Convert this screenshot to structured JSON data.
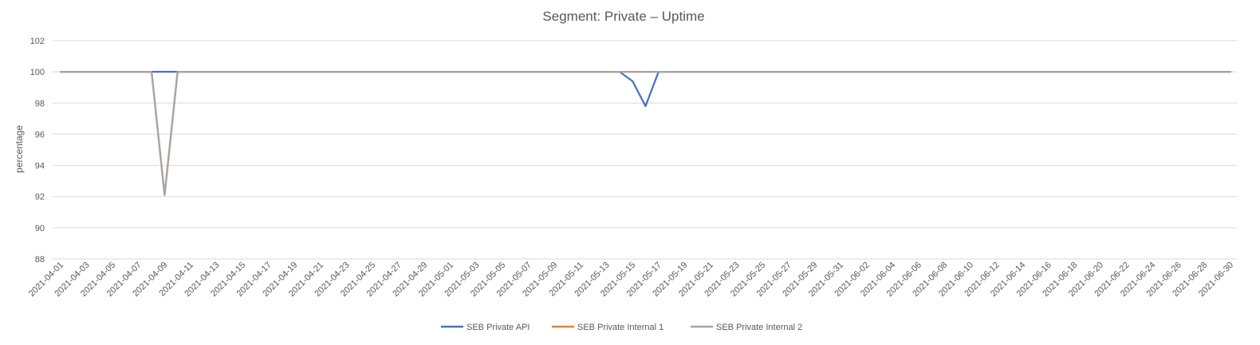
{
  "chart_data": {
    "type": "line",
    "title": "Segment: Private – Uptime",
    "xlabel": "",
    "ylabel": "percentage",
    "ylim": [
      88,
      102
    ],
    "yticks": [
      88,
      90,
      92,
      94,
      96,
      98,
      100,
      102
    ],
    "grid": true,
    "legend_position": "bottom",
    "x_start": "2021-04-01",
    "x_end": "2021-06-30",
    "x_tick_step_days": 2,
    "series": [
      {
        "name": "SEB Private API",
        "color": "#4472c4",
        "values": [
          100,
          100,
          100,
          100,
          100,
          100,
          100,
          100,
          100,
          100,
          100,
          100,
          100,
          100,
          100,
          100,
          100,
          100,
          100,
          100,
          100,
          100,
          100,
          100,
          100,
          100,
          100,
          100,
          100,
          100,
          100,
          100,
          100,
          100,
          100,
          100,
          100,
          100,
          100,
          100,
          100,
          100,
          100,
          100,
          99.4,
          97.8,
          100,
          100,
          100,
          100,
          100,
          100,
          100,
          100,
          100,
          100,
          100,
          100,
          100,
          100,
          100,
          100,
          100,
          100,
          100,
          100,
          100,
          100,
          100,
          100,
          100,
          100,
          100,
          100,
          100,
          100,
          100,
          100,
          100,
          100,
          100,
          100,
          100,
          100,
          100,
          100,
          100,
          100,
          100,
          100,
          100
        ]
      },
      {
        "name": "SEB Private Internal 1",
        "color": "#ed7d31",
        "values": [
          100,
          100,
          100,
          100,
          100,
          100,
          100,
          100,
          92.1,
          100,
          100,
          100,
          100,
          100,
          100,
          100,
          100,
          100,
          100,
          100,
          100,
          100,
          100,
          100,
          100,
          100,
          100,
          100,
          100,
          100,
          100,
          100,
          100,
          100,
          100,
          100,
          100,
          100,
          100,
          100,
          100,
          100,
          100,
          100,
          100,
          100,
          100,
          100,
          100,
          100,
          100,
          100,
          100,
          100,
          100,
          100,
          100,
          100,
          100,
          100,
          100,
          100,
          100,
          100,
          100,
          100,
          100,
          100,
          100,
          100,
          100,
          100,
          100,
          100,
          100,
          100,
          100,
          100,
          100,
          100,
          100,
          100,
          100,
          100,
          100,
          100,
          100,
          100,
          100,
          100,
          100
        ]
      },
      {
        "name": "SEB Private Internal 2",
        "color": "#a5a5a5",
        "values": [
          100,
          100,
          100,
          100,
          100,
          100,
          100,
          100,
          92.1,
          100,
          100,
          100,
          100,
          100,
          100,
          100,
          100,
          100,
          100,
          100,
          100,
          100,
          100,
          100,
          100,
          100,
          100,
          100,
          100,
          100,
          100,
          100,
          100,
          100,
          100,
          100,
          100,
          100,
          100,
          100,
          100,
          100,
          100,
          100,
          100,
          100,
          100,
          100,
          100,
          100,
          100,
          100,
          100,
          100,
          100,
          100,
          100,
          100,
          100,
          100,
          100,
          100,
          100,
          100,
          100,
          100,
          100,
          100,
          100,
          100,
          100,
          100,
          100,
          100,
          100,
          100,
          100,
          100,
          100,
          100,
          100,
          100,
          100,
          100,
          100,
          100,
          100,
          100,
          100,
          100,
          100
        ]
      }
    ]
  }
}
